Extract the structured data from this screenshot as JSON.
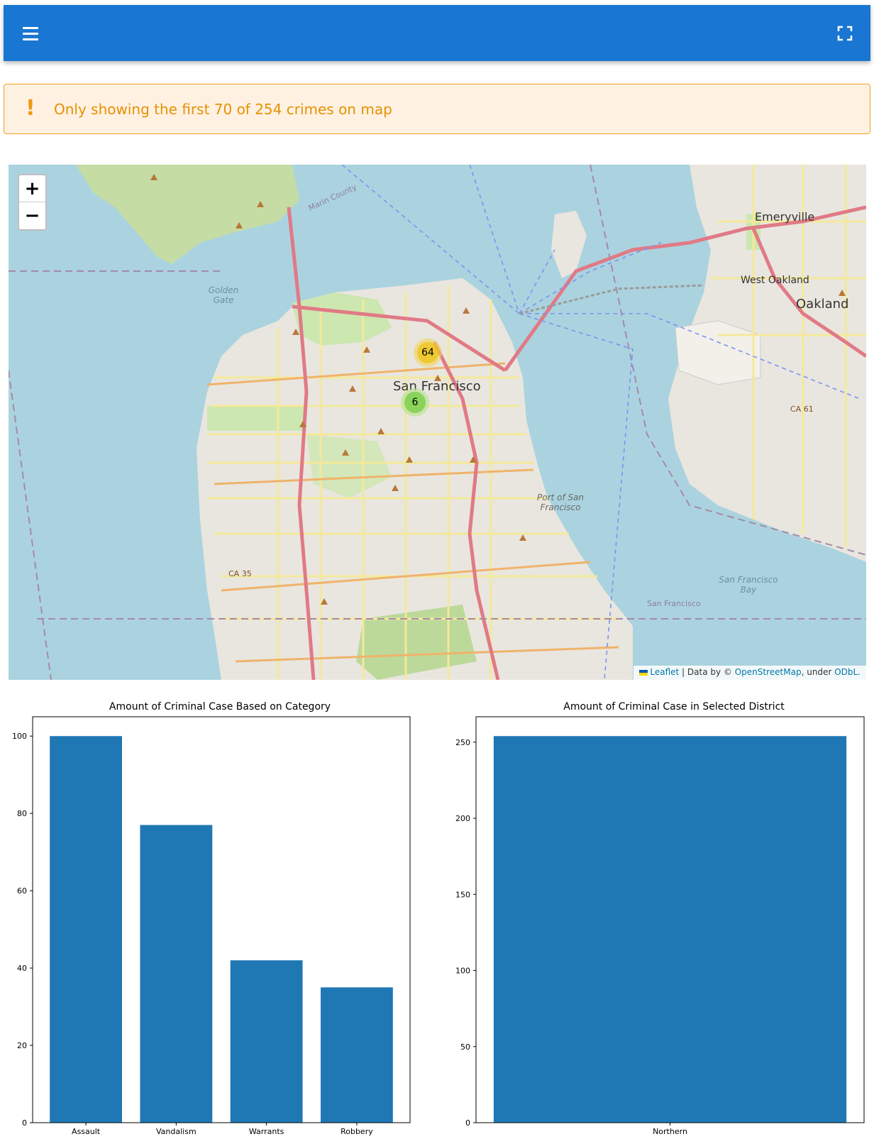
{
  "appbar": {
    "menu_icon": "hamburger-menu-icon",
    "fullscreen_icon": "fullscreen-icon",
    "color": "#1976d2"
  },
  "alert": {
    "icon": "!",
    "text": "Only showing the first 70 of 254 crimes on map",
    "color": "#e69100"
  },
  "map": {
    "zoom_in": "+",
    "zoom_out": "−",
    "clusters": [
      {
        "count": "64",
        "color": "#f1d357"
      },
      {
        "count": "6",
        "color": "#6ecc39"
      }
    ],
    "labels": {
      "city": "San Francisco",
      "emeryville": "Emeryville",
      "west_oakland": "West Oakland",
      "oakland": "Oakland",
      "golden_gate": "Golden Gate",
      "port": "Port of San Francisco",
      "bay": "San Francisco Bay",
      "marin": "Marin County",
      "sf_bottom": "San Francisco",
      "ca35": "CA 35",
      "ca61": "CA 61"
    },
    "attribution": {
      "leaflet": "Leaflet",
      "data_by": "| Data by ©",
      "osm": "OpenStreetMap",
      "under": ", under",
      "odbl": "ODbL."
    }
  },
  "chart_data": [
    {
      "type": "bar",
      "title": "Amount of Criminal Case Based on Category",
      "categories": [
        "Assault",
        "Vandalism",
        "Warrants",
        "Robbery"
      ],
      "values": [
        100,
        77,
        42,
        35
      ],
      "ylim": [
        0,
        105
      ],
      "yticks": [
        0,
        20,
        40,
        60,
        80,
        100
      ],
      "color": "#1f77b4"
    },
    {
      "type": "bar",
      "title": "Amount of Criminal Case in Selected District",
      "categories": [
        "Northern"
      ],
      "values": [
        254
      ],
      "ylim": [
        0,
        266.7
      ],
      "yticks": [
        0,
        50,
        100,
        150,
        200,
        250
      ],
      "color": "#1f77b4"
    }
  ]
}
